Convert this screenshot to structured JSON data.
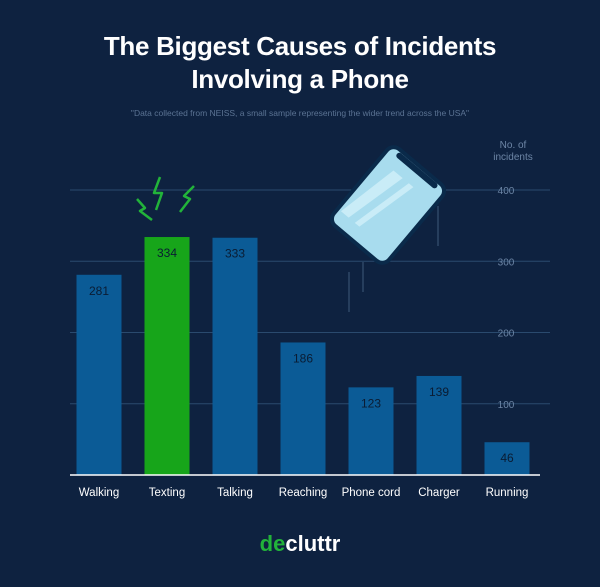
{
  "title_line1": "The Biggest Causes of Incidents",
  "title_line2": "Involving a Phone",
  "subtitle": "\"Data collected from NEISS, a small sample representing the wider trend across the USA\"",
  "logo": {
    "prefix": "de",
    "suffix": "cluttr"
  },
  "colors": {
    "background": "#0e2240",
    "bar": "#0b5b96",
    "highlight": "#17a51a",
    "gridline": "#2a4a6e",
    "axis_text": "#6d86a6",
    "label_text": "#ffffff",
    "value_text": "#0a1c33"
  },
  "chart_data": {
    "type": "bar",
    "categories": [
      "Walking",
      "Texting",
      "Talking",
      "Reaching",
      "Phone cord",
      "Charger",
      "Running"
    ],
    "values": [
      281,
      334,
      333,
      186,
      123,
      139,
      46
    ],
    "highlight_index": 1,
    "ylabel": "No. of incidents",
    "ylim": [
      0,
      400
    ],
    "yticks": [
      100,
      200,
      300,
      400
    ],
    "grid": true,
    "axis_side": "right"
  }
}
